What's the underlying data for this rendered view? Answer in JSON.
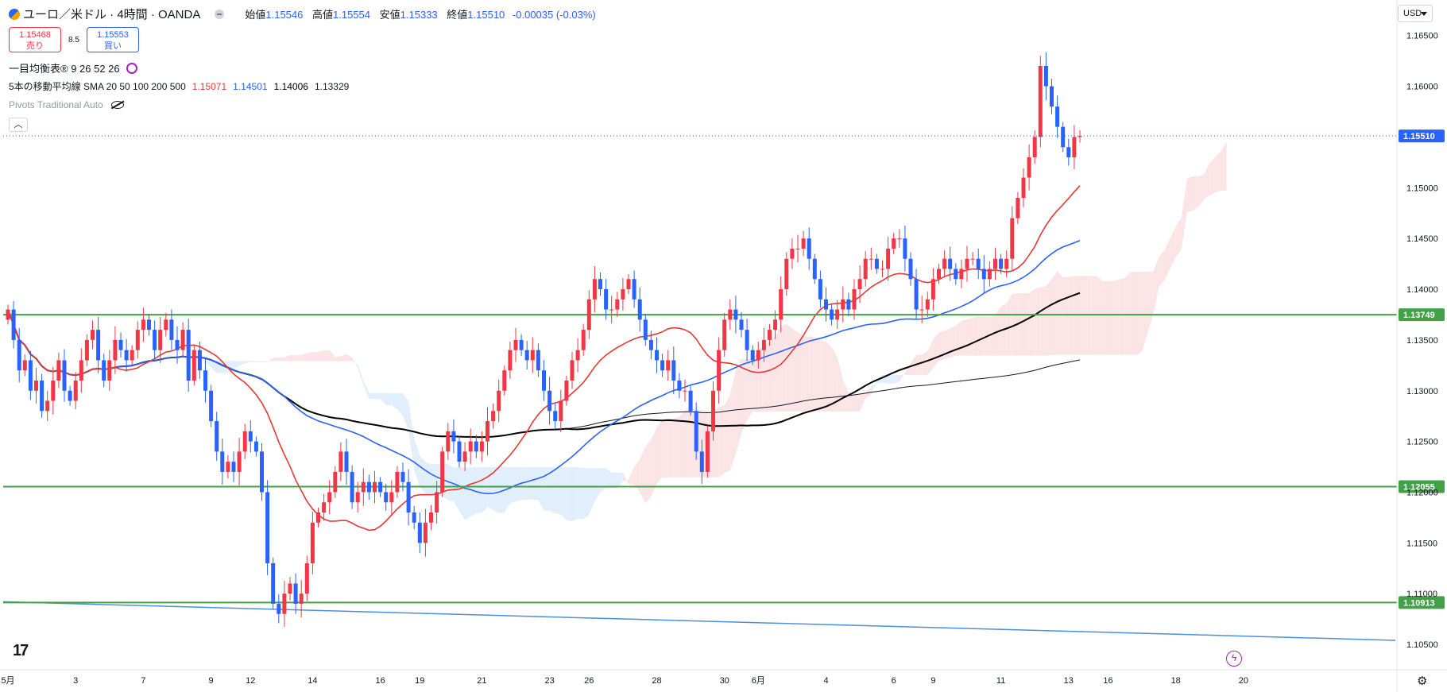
{
  "header": {
    "symbol_title": "ユーロ／米ドル · 4時間 · OANDA",
    "symbol_icon": "currency-pair-icon",
    "ohlc": [
      {
        "key": "始値",
        "value": "1.15546"
      },
      {
        "key": "高値",
        "value": "1.15554"
      },
      {
        "key": "安値",
        "value": "1.15333"
      },
      {
        "key": "終値",
        "value": "1.15510"
      }
    ],
    "change": "-0.00035 (-0.03%)"
  },
  "trade": {
    "sell_price": "1.15468",
    "sell_label": "売り",
    "spread": "8.5",
    "buy_price": "1.15553",
    "buy_label": "買い"
  },
  "indicators": [
    {
      "name": "一目均衡表® 9 26 52 26",
      "values": []
    },
    {
      "name": "5本の移動平均線 SMA 20 50 100 200 500",
      "values": [
        "1.15071",
        "1.14501",
        "1.14006",
        "1.13329"
      ]
    },
    {
      "name": "Pivots Traditional Auto",
      "values": []
    }
  ],
  "currency_selector": "USD",
  "colors": {
    "bull": "#f23645",
    "bear": "#2962ff",
    "sma20": "#e53935",
    "sma50": "#2962ff",
    "sma100": "#000000",
    "sma200": "#131722",
    "pivot": "#43a047",
    "trendline": "#4a90d9",
    "cloud_bull": "#fbe4e6",
    "cloud_bear": "#e1eefb"
  },
  "chart_data": {
    "type": "candlestick",
    "symbol": "EUR/USD",
    "timeframe": "4h",
    "price_axis": {
      "ylim": [
        1.1025,
        1.1685
      ],
      "ticks": [
        "1.16500",
        "1.16000",
        "1.15500",
        "1.15000",
        "1.14500",
        "1.14000",
        "1.13500",
        "1.13000",
        "1.12500",
        "1.12000",
        "1.11500",
        "1.11000",
        "1.10500"
      ],
      "tick_values": [
        1.165,
        1.16,
        1.155,
        1.15,
        1.145,
        1.14,
        1.135,
        1.13,
        1.125,
        1.12,
        1.115,
        1.11,
        1.105
      ]
    },
    "time_axis": {
      "labels": [
        "5月",
        "3",
        "7",
        "9",
        "12",
        "14",
        "16",
        "19",
        "21",
        "23",
        "26",
        "28",
        "30",
        "6月",
        "4",
        "6",
        "9",
        "11",
        "13",
        "16",
        "18",
        "20"
      ],
      "bar_index": [
        0,
        12,
        24,
        36,
        43,
        54,
        66,
        73,
        84,
        96,
        103,
        115,
        127,
        133,
        145,
        157,
        164,
        176,
        188,
        195,
        207,
        219
      ]
    },
    "last_price": {
      "label": "1.15510",
      "value": 1.1551
    },
    "pivot_levels": [
      {
        "label": "1.13749",
        "value": 1.13749
      },
      {
        "label": "1.12055",
        "value": 1.12055
      },
      {
        "label": "1.10913",
        "value": 1.10913
      }
    ],
    "trendline": {
      "from": [
        0,
        1.1092
      ],
      "to": [
        222,
        1.1054
      ]
    },
    "closes": [
      1.138,
      1.135,
      1.132,
      1.133,
      1.13,
      1.131,
      1.128,
      1.129,
      1.131,
      1.133,
      1.13,
      1.129,
      1.131,
      1.133,
      1.135,
      1.136,
      1.133,
      1.131,
      1.133,
      1.135,
      1.134,
      1.133,
      1.134,
      1.136,
      1.137,
      1.136,
      1.134,
      1.136,
      1.137,
      1.135,
      1.134,
      1.136,
      1.131,
      1.134,
      1.132,
      1.13,
      1.127,
      1.124,
      1.122,
      1.123,
      1.122,
      1.124,
      1.126,
      1.125,
      1.124,
      1.12,
      1.113,
      1.109,
      1.108,
      1.11,
      1.111,
      1.109,
      1.11,
      1.113,
      1.117,
      1.118,
      1.119,
      1.12,
      1.122,
      1.124,
      1.122,
      1.119,
      1.12,
      1.121,
      1.12,
      1.121,
      1.12,
      1.119,
      1.12,
      1.122,
      1.121,
      1.118,
      1.117,
      1.115,
      1.117,
      1.118,
      1.12,
      1.124,
      1.126,
      1.125,
      1.123,
      1.124,
      1.125,
      1.124,
      1.125,
      1.127,
      1.128,
      1.13,
      1.132,
      1.134,
      1.135,
      1.134,
      1.133,
      1.134,
      1.132,
      1.13,
      1.128,
      1.127,
      1.129,
      1.131,
      1.133,
      1.134,
      1.136,
      1.139,
      1.141,
      1.14,
      1.138,
      1.138,
      1.139,
      1.14,
      1.141,
      1.139,
      1.137,
      1.135,
      1.134,
      1.133,
      1.132,
      1.133,
      1.131,
      1.13,
      1.13,
      1.128,
      1.124,
      1.122,
      1.126,
      1.13,
      1.134,
      1.137,
      1.138,
      1.137,
      1.136,
      1.134,
      1.133,
      1.134,
      1.135,
      1.136,
      1.137,
      1.14,
      1.143,
      1.144,
      1.144,
      1.145,
      1.143,
      1.141,
      1.139,
      1.138,
      1.137,
      1.138,
      1.139,
      1.138,
      1.14,
      1.141,
      1.143,
      1.143,
      1.142,
      1.142,
      1.144,
      1.145,
      1.145,
      1.143,
      1.141,
      1.138,
      1.138,
      1.139,
      1.141,
      1.142,
      1.143,
      1.142,
      1.141,
      1.142,
      1.143,
      1.143,
      1.142,
      1.141,
      1.142,
      1.143,
      1.142,
      1.143,
      1.147,
      1.149,
      1.151,
      1.153,
      1.155,
      1.162,
      1.16,
      1.158,
      1.156,
      1.154,
      1.153,
      1.155,
      1.1551
    ]
  }
}
